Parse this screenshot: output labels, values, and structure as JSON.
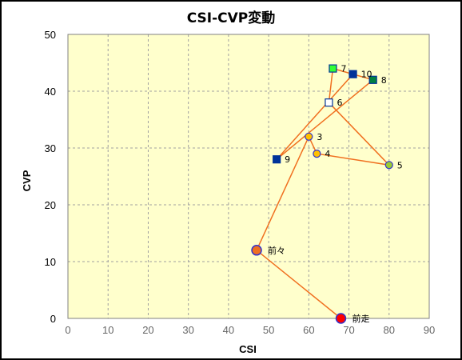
{
  "chart_data": {
    "type": "scatter",
    "title": "CSI-CVP変動",
    "xlabel": "CSI",
    "ylabel": "CVP",
    "xlim": [
      0,
      90
    ],
    "ylim": [
      0,
      50
    ],
    "xticks": [
      "0",
      "10",
      "20",
      "30",
      "40",
      "50",
      "60",
      "70",
      "80",
      "90"
    ],
    "yticks": [
      "0",
      "10",
      "20",
      "30",
      "40",
      "50"
    ],
    "grid": true,
    "plot_background": "#ffffcc",
    "line_color": "#f07020",
    "points": [
      {
        "label": "前走",
        "x": 68,
        "y": 0,
        "marker": "circle-large",
        "fill": "#ff0000"
      },
      {
        "label": "前々",
        "x": 47,
        "y": 12,
        "marker": "circle-large",
        "fill": "#f07020"
      },
      {
        "label": "3",
        "x": 60,
        "y": 32,
        "marker": "circle",
        "fill": "#ffc000"
      },
      {
        "label": "4",
        "x": 62,
        "y": 29,
        "marker": "circle",
        "fill": "#ffc000"
      },
      {
        "label": "5",
        "x": 80,
        "y": 27,
        "marker": "circle",
        "fill": "#99cc33"
      },
      {
        "label": "6",
        "x": 65,
        "y": 38,
        "marker": "square",
        "fill": "#ffffff"
      },
      {
        "label": "7",
        "x": 66,
        "y": 44,
        "marker": "square",
        "fill": "#33ff33"
      },
      {
        "label": "8",
        "x": 76,
        "y": 42,
        "marker": "square",
        "fill": "#008040"
      },
      {
        "label": "9",
        "x": 52,
        "y": 28,
        "marker": "square",
        "fill": "#003399"
      },
      {
        "label": "10",
        "x": 71,
        "y": 43,
        "marker": "square",
        "fill": "#003399"
      }
    ]
  }
}
